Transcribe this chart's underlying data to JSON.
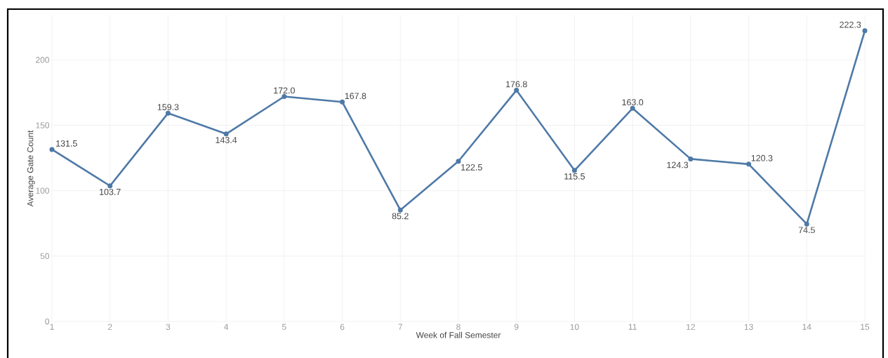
{
  "chart_data": {
    "type": "line",
    "xlabel": "Week of Fall Semester",
    "ylabel": "Average Gate Count",
    "x": [
      1,
      2,
      3,
      4,
      5,
      6,
      7,
      8,
      9,
      10,
      11,
      12,
      13,
      14,
      15
    ],
    "values": [
      131.5,
      103.7,
      159.3,
      143.4,
      172.0,
      167.8,
      85.2,
      122.5,
      176.8,
      115.5,
      163.0,
      124.3,
      120.3,
      74.5,
      222.3
    ],
    "value_labels": [
      "131.5",
      "103.7",
      "159.3",
      "143.4",
      "172.0",
      "167.8",
      "85.2",
      "122.5",
      "176.8",
      "115.5",
      "163.0",
      "124.3",
      "120.3",
      "74.5",
      "222.3"
    ],
    "color": "#4e79a7",
    "marker": "circle",
    "line_style": "solid",
    "grid": true,
    "xlim": [
      1,
      15
    ],
    "xticks": [
      1,
      2,
      3,
      4,
      5,
      6,
      7,
      8,
      9,
      10,
      11,
      12,
      13,
      14,
      15
    ],
    "ylim": [
      0,
      234
    ],
    "yticks": [
      0,
      50,
      100,
      150,
      200
    ]
  }
}
